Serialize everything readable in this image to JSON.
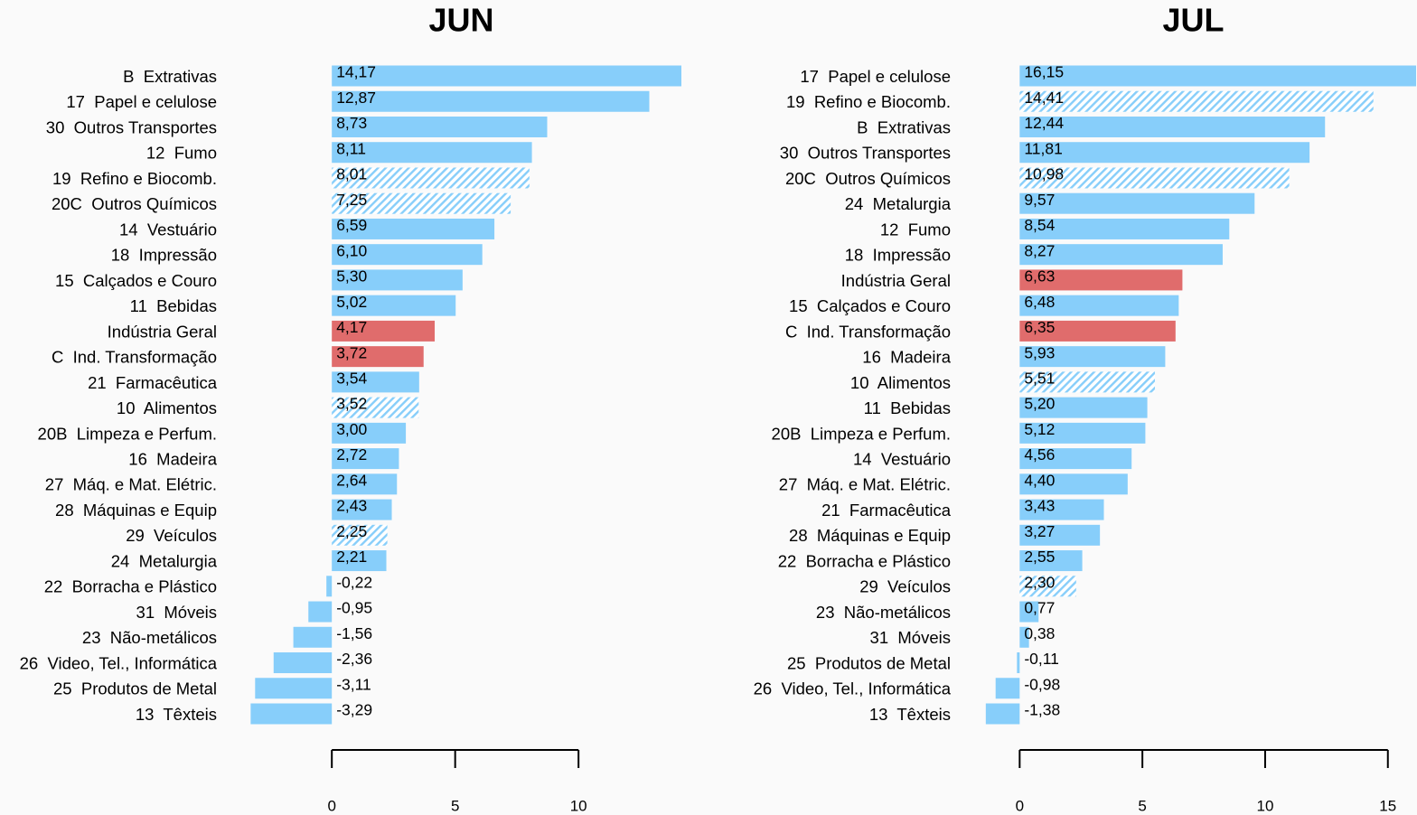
{
  "chart_data": [
    {
      "type": "bar",
      "title": "JUN",
      "categories": [
        "B  Extrativas",
        "17  Papel e celulose",
        "30  Outros Transportes",
        "12  Fumo",
        "19  Refino e Biocomb.",
        "20C  Outros Químicos",
        "14  Vestuário",
        "18  Impressão",
        "15  Calçados e Couro",
        "11  Bebidas",
        "Indústria Geral",
        "C  Ind. Transformação",
        "21  Farmacêutica",
        "10  Alimentos",
        "20B  Limpeza e Perfum.",
        "16  Madeira",
        "27  Máq. e Mat. Elétric.",
        "28  Máquinas e Equip",
        "29  Veículos",
        "24  Metalurgia",
        "22  Borracha e Plástico",
        "31  Móveis",
        "23  Não-metálicos",
        "26  Video, Tel., Informática",
        "25  Produtos de Metal",
        "13  Têxteis"
      ],
      "values": [
        14.17,
        12.87,
        8.73,
        8.11,
        8.01,
        7.25,
        6.59,
        6.1,
        5.3,
        5.02,
        4.17,
        3.72,
        3.54,
        3.52,
        3.0,
        2.72,
        2.64,
        2.43,
        2.25,
        2.21,
        -0.22,
        -0.95,
        -1.56,
        -2.36,
        -3.11,
        -3.29
      ],
      "value_labels": [
        "14,17",
        "12,87",
        "8,73",
        "8,11",
        "8,01",
        "7,25",
        "6,59",
        "6,10",
        "5,30",
        "5,02",
        "4,17",
        "3,72",
        "3,54",
        "3,52",
        "3,00",
        "2,72",
        "2,64",
        "2,43",
        "2,25",
        "2,21",
        "-0,22",
        "-0,95",
        "-1,56",
        "-2,36",
        "-3,11",
        "-3,29"
      ],
      "colors": [
        "#87cefa",
        "#87cefa",
        "#87cefa",
        "#87cefa",
        "#87cefa",
        "#87cefa",
        "#87cefa",
        "#87cefa",
        "#87cefa",
        "#87cefa",
        "#e06c6c",
        "#e06c6c",
        "#87cefa",
        "#87cefa",
        "#87cefa",
        "#87cefa",
        "#87cefa",
        "#87cefa",
        "#87cefa",
        "#87cefa",
        "#87cefa",
        "#87cefa",
        "#87cefa",
        "#87cefa",
        "#87cefa",
        "#87cefa"
      ],
      "hatched": [
        false,
        false,
        false,
        false,
        true,
        true,
        false,
        false,
        false,
        false,
        false,
        false,
        false,
        true,
        false,
        false,
        false,
        false,
        true,
        false,
        false,
        false,
        false,
        false,
        false,
        false
      ],
      "xlim": [
        -4,
        14.5
      ],
      "xticks": [
        0,
        5,
        10
      ]
    },
    {
      "type": "bar",
      "title": "JUL",
      "categories": [
        "17  Papel e celulose",
        "19  Refino e Biocomb.",
        "B  Extrativas",
        "30  Outros Transportes",
        "20C  Outros Químicos",
        "24  Metalurgia",
        "12  Fumo",
        "18  Impressão",
        "Indústria Geral",
        "15  Calçados e Couro",
        "C  Ind. Transformação",
        "16  Madeira",
        "10  Alimentos",
        "11  Bebidas",
        "20B  Limpeza e Perfum.",
        "14  Vestuário",
        "27  Máq. e Mat. Elétric.",
        "21  Farmacêutica",
        "28  Máquinas e Equip",
        "22  Borracha e Plástico",
        "29  Veículos",
        "23  Não-metálicos",
        "31  Móveis",
        "25  Produtos de Metal",
        "26  Video, Tel., Informática",
        "13  Têxteis"
      ],
      "values": [
        16.15,
        14.41,
        12.44,
        11.81,
        10.98,
        9.57,
        8.54,
        8.27,
        6.63,
        6.48,
        6.35,
        5.93,
        5.51,
        5.2,
        5.12,
        4.56,
        4.4,
        3.43,
        3.27,
        2.55,
        2.3,
        0.77,
        0.38,
        -0.11,
        -0.98,
        -1.38
      ],
      "value_labels": [
        "16,15",
        "14,41",
        "12,44",
        "11,81",
        "10,98",
        "9,57",
        "8,54",
        "8,27",
        "6,63",
        "6,48",
        "6,35",
        "5,93",
        "5,51",
        "5,20",
        "5,12",
        "4,56",
        "4,40",
        "3,43",
        "3,27",
        "2,55",
        "2,30",
        "0,77",
        "0,38",
        "-0,11",
        "-0,98",
        "-1,38"
      ],
      "colors": [
        "#87cefa",
        "#87cefa",
        "#87cefa",
        "#87cefa",
        "#87cefa",
        "#87cefa",
        "#87cefa",
        "#87cefa",
        "#e06c6c",
        "#87cefa",
        "#e06c6c",
        "#87cefa",
        "#87cefa",
        "#87cefa",
        "#87cefa",
        "#87cefa",
        "#87cefa",
        "#87cefa",
        "#87cefa",
        "#87cefa",
        "#87cefa",
        "#87cefa",
        "#87cefa",
        "#87cefa",
        "#87cefa",
        "#87cefa"
      ],
      "hatched": [
        false,
        true,
        false,
        false,
        true,
        false,
        false,
        false,
        false,
        false,
        false,
        false,
        true,
        false,
        false,
        false,
        false,
        false,
        false,
        false,
        true,
        false,
        false,
        false,
        false,
        false
      ],
      "xlim": [
        -2,
        16.15
      ],
      "xticks": [
        0,
        5,
        10,
        15
      ]
    }
  ]
}
